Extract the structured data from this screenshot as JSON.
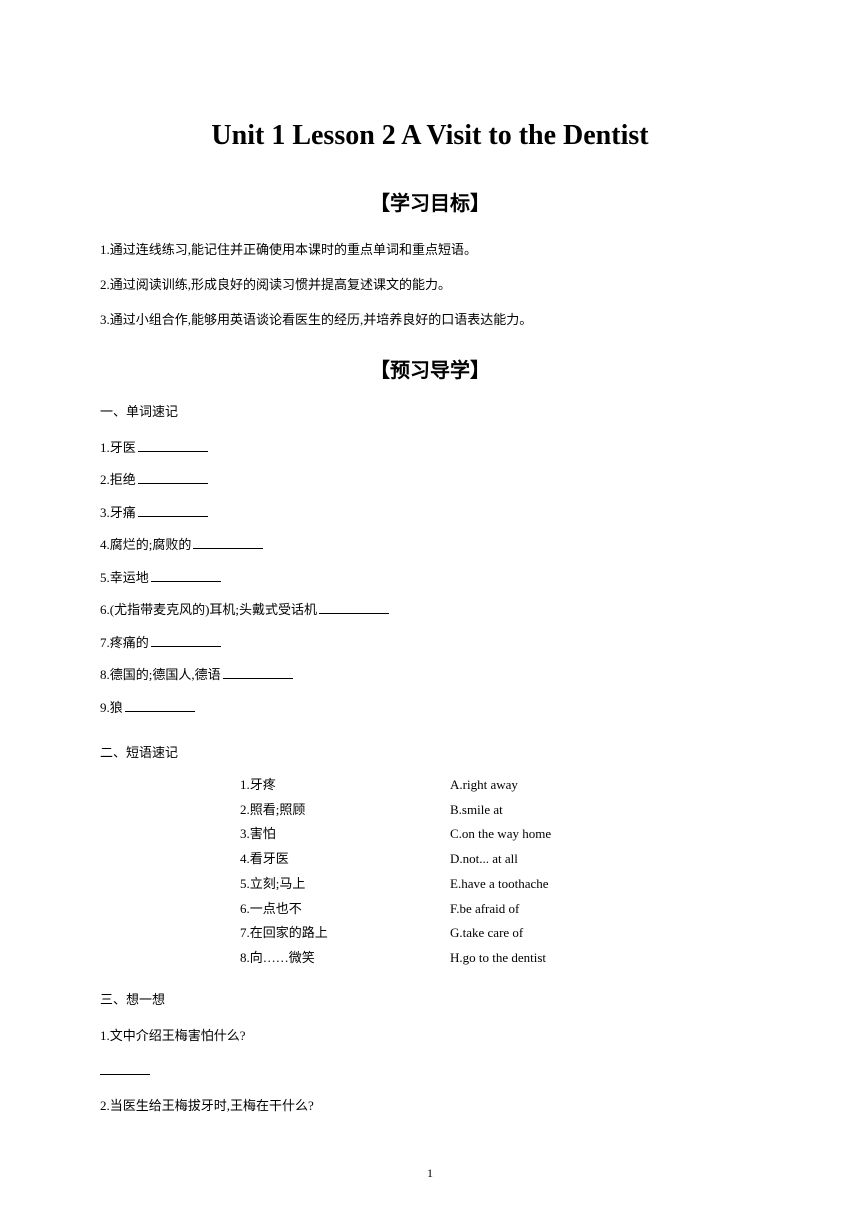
{
  "title": "Unit 1 Lesson 2 A Visit to the Dentist",
  "sections": {
    "objectives_heading": "【学习目标】",
    "preview_heading": "【预习导学】"
  },
  "objectives": [
    "1.通过连线练习,能记住并正确使用本课时的重点单词和重点短语。",
    "2.通过阅读训练,形成良好的阅读习惯并提高复述课文的能力。",
    "3.通过小组合作,能够用英语谈论看医生的经历,并培养良好的口语表达能力。"
  ],
  "sub_headings": {
    "vocab": "一、单词速记",
    "phrases": "二、短语速记",
    "think": "三、想一想"
  },
  "vocab": [
    "1.牙医",
    "2.拒绝",
    "3.牙痛",
    "4.腐烂的;腐败的",
    "5.幸运地",
    "6.(尤指带麦克风的)耳机;头戴式受话机",
    "7.疼痛的",
    "8.德国的;德国人,德语",
    "9.狼"
  ],
  "phrases": [
    {
      "left": "1.牙疼",
      "right": "A.right away"
    },
    {
      "left": "2.照看;照顾",
      "right": "B.smile at"
    },
    {
      "left": "3.害怕",
      "right": "C.on the way home"
    },
    {
      "left": "4.看牙医",
      "right": "D.not... at all"
    },
    {
      "left": "5.立刻;马上",
      "right": "E.have a toothache"
    },
    {
      "left": "6.一点也不",
      "right": "F.be afraid of"
    },
    {
      "left": "7.在回家的路上",
      "right": "G.take care of"
    },
    {
      "left": "8.向……微笑",
      "right": "H.go to the dentist"
    }
  ],
  "think_questions": [
    "1.文中介绍王梅害怕什么?",
    "2.当医生给王梅拔牙时,王梅在干什么?"
  ],
  "page_number": "1"
}
